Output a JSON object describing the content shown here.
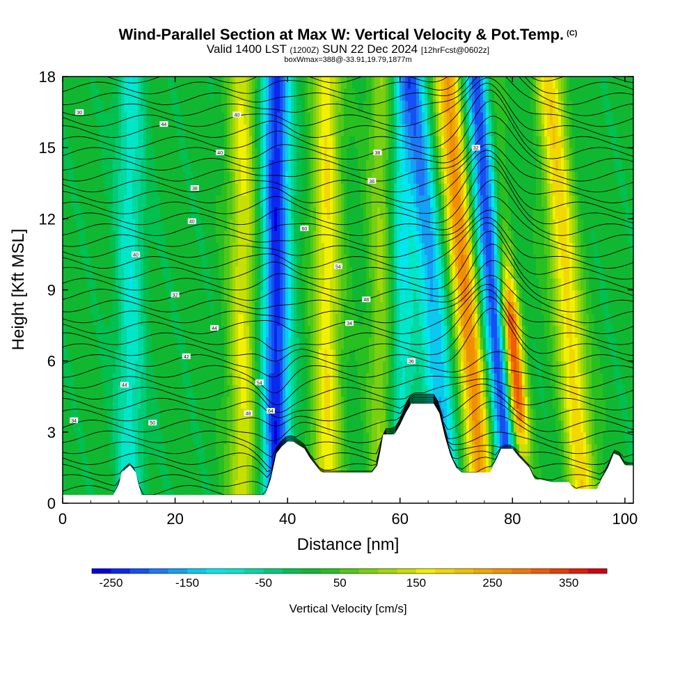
{
  "title": {
    "main": "Wind-Parallel Section at Max W: Vertical Velocity & Pot.Temp.",
    "copyright": "(C)",
    "valid_prefix": "Valid 1400 LST",
    "valid_utc": "(1200Z)",
    "valid_date": "SUN 22 Dec 2024",
    "forecast": "[12hrFcst@0602z]",
    "box_info": "boxWmax=388@-33.91,19.79,1877m"
  },
  "chart_data": {
    "type": "heatmap",
    "xlabel": "Distance [nm]",
    "ylabel": "Height [Kft MSL]",
    "xlim": [
      0,
      101.5
    ],
    "ylim": [
      0,
      18
    ],
    "x_ticks": [
      0,
      20,
      40,
      60,
      80,
      100
    ],
    "y_ticks": [
      0,
      3,
      6,
      9,
      12,
      15,
      18
    ],
    "x_tick_labels": [
      "0",
      "20",
      "40",
      "60",
      "80",
      "100"
    ],
    "y_tick_labels": [
      "0",
      "3",
      "6",
      "9",
      "12",
      "15",
      "18"
    ],
    "terrain_kft": [
      [
        0,
        0.35
      ],
      [
        9,
        0.35
      ],
      [
        10,
        0.8
      ],
      [
        10.5,
        1.3
      ],
      [
        12,
        1.6
      ],
      [
        13,
        1.3
      ],
      [
        13.5,
        0.8
      ],
      [
        14,
        0.35
      ],
      [
        36,
        0.35
      ],
      [
        37,
        1.0
      ],
      [
        38,
        2.1
      ],
      [
        39,
        2.4
      ],
      [
        40,
        2.6
      ],
      [
        41,
        2.6
      ],
      [
        43,
        2.3
      ],
      [
        44,
        1.9
      ],
      [
        45,
        1.6
      ],
      [
        46,
        1.3
      ],
      [
        50,
        1.3
      ],
      [
        55,
        1.3
      ],
      [
        56,
        1.6
      ],
      [
        56.5,
        2.2
      ],
      [
        57,
        2.9
      ],
      [
        59,
        2.9
      ],
      [
        60,
        3.3
      ],
      [
        61,
        3.8
      ],
      [
        62,
        4.2
      ],
      [
        66,
        4.2
      ],
      [
        67,
        3.8
      ],
      [
        68,
        2.8
      ],
      [
        69,
        2.0
      ],
      [
        70,
        1.5
      ],
      [
        71,
        1.3
      ],
      [
        76,
        1.3
      ],
      [
        77,
        1.8
      ],
      [
        78,
        2.3
      ],
      [
        80,
        2.3
      ],
      [
        81,
        2.0
      ],
      [
        83,
        1.5
      ],
      [
        84,
        1.0
      ],
      [
        85,
        1.0
      ],
      [
        87,
        0.9
      ],
      [
        90,
        0.9
      ],
      [
        91,
        0.6
      ],
      [
        95,
        0.6
      ],
      [
        96,
        1.1
      ],
      [
        97,
        1.5
      ],
      [
        98,
        2.1
      ],
      [
        99,
        2.0
      ],
      [
        100,
        1.6
      ],
      [
        101.5,
        1.6
      ]
    ],
    "vertical_velocity_columns": [
      {
        "x": 12,
        "value": -100
      },
      {
        "x": 32,
        "value": 140
      },
      {
        "x": 38,
        "value": -250
      },
      {
        "x": 47,
        "value": 160
      },
      {
        "x": 57,
        "value": 110
      },
      {
        "x": 60,
        "value": -120
      },
      {
        "x": 67,
        "value": -170
      },
      {
        "x": 73,
        "value": 260
      },
      {
        "x": 78,
        "value": -250
      },
      {
        "x": 80.5,
        "value": 388
      },
      {
        "x": 91,
        "value": 180
      }
    ],
    "isentrope_labels": [
      "34",
      "30",
      "44",
      "40",
      "50",
      "44",
      "32",
      "42",
      "40",
      "38",
      "44",
      "40",
      "40",
      "48",
      "54",
      "64",
      "60",
      "54",
      "34",
      "48",
      "36",
      "38",
      "36",
      "32"
    ],
    "colorbar": {
      "title": "Vertical Velocity [cm/s]",
      "min": -275,
      "max": 400,
      "step": 25,
      "tick_labels": [
        "-250",
        "-150",
        "-50",
        "50",
        "150",
        "250",
        "350"
      ],
      "tick_values": [
        -250,
        -150,
        -50,
        50,
        150,
        250,
        350
      ],
      "colors": [
        "#0000e6",
        "#0a28f0",
        "#1450f5",
        "#1e78f5",
        "#14a0f5",
        "#0ac8f0",
        "#00e6f0",
        "#00e6c8",
        "#00d9a0",
        "#00cc78",
        "#00c050",
        "#10b832",
        "#28c020",
        "#50c818",
        "#78d010",
        "#a0d808",
        "#c8e000",
        "#f0f000",
        "#f0d800",
        "#f0c000",
        "#f0a800",
        "#f09000",
        "#f07800",
        "#f05a00",
        "#e83c00",
        "#e01e00",
        "#d00010"
      ]
    }
  }
}
